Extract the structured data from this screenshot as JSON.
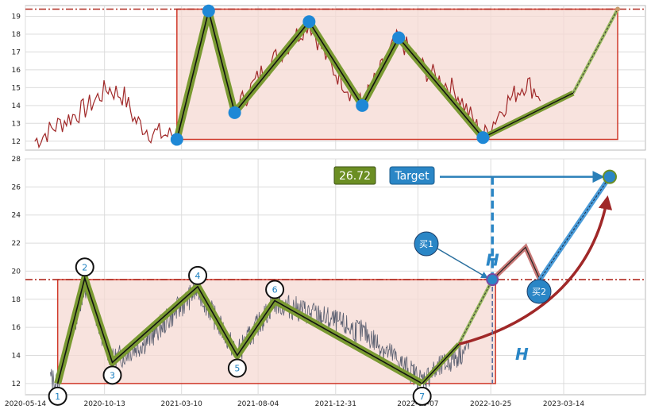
{
  "chart_data": [
    {
      "type": "line",
      "title": "",
      "xlabel": "",
      "ylabel": "",
      "ylim": [
        11.5,
        19.6
      ],
      "yticks": [
        12,
        13,
        14,
        15,
        16,
        17,
        18,
        19
      ],
      "grid": true,
      "colors": {
        "price": "#a02828",
        "pattern": "#6b8e23",
        "marker": "#1e88d6",
        "box": "#d03a2b"
      },
      "series": [
        {
          "values_trace": [
            [
              12.0,
              12.3
            ],
            [
              12.5,
              12.8
            ],
            [
              13.0,
              13.4
            ],
            [
              13.6,
              13.2
            ],
            [
              14.0,
              14.6
            ],
            [
              14.4,
              15.1
            ],
            [
              14.8,
              14.2
            ],
            [
              15.2,
              15.0
            ],
            [
              15.1,
              13.2
            ],
            [
              13.4,
              12.8
            ],
            [
              12.6,
              12.4
            ],
            [
              12.2,
              12.5
            ],
            [
              12.1,
              12.2
            ],
            [
              12.5,
              12.3
            ]
          ]
        }
      ],
      "pattern_points": [
        {
          "x": "2021-03-01",
          "y": 12.1
        },
        {
          "x": "2021-05-01",
          "y": 19.3
        },
        {
          "x": "2021-06-20",
          "y": 13.6
        },
        {
          "x": "2021-11-10",
          "y": 18.7
        },
        {
          "x": "2022-02-20",
          "y": 14.0
        },
        {
          "x": "2022-05-01",
          "y": 17.8
        },
        {
          "x": "2022-10-10",
          "y": 12.2
        }
      ],
      "resistance_level": 19.4,
      "box_range": [
        12.1,
        19.4
      ]
    },
    {
      "type": "line",
      "title": "",
      "xlabel": "",
      "ylabel": "",
      "ylim": [
        11.2,
        28.0
      ],
      "yticks": [
        12,
        14,
        16,
        18,
        20,
        22,
        24,
        26,
        28
      ],
      "xticks": [
        "2020-05-14",
        "2020-10-13",
        "2021-03-10",
        "2021-08-04",
        "2021-12-31",
        "2022-06-07",
        "2022-10-25",
        "2023-03-14"
      ],
      "grid": true,
      "resistance_level": 19.4,
      "box_range": [
        12.0,
        19.4
      ],
      "pattern_points": [
        {
          "label": "1",
          "x": "2020-07-15",
          "y": 12.0
        },
        {
          "label": "2",
          "x": "2020-09-05",
          "y": 19.5
        },
        {
          "label": "3",
          "x": "2020-10-28",
          "y": 13.5
        },
        {
          "label": "4",
          "x": "2021-04-10",
          "y": 18.9
        },
        {
          "label": "5",
          "x": "2021-06-25",
          "y": 14.0
        },
        {
          "label": "6",
          "x": "2021-09-05",
          "y": 17.9
        },
        {
          "label": "7",
          "x": "2022-06-15",
          "y": 12.0
        }
      ],
      "target_value": 26.72,
      "target_label": "Target",
      "buy_labels": [
        "买1",
        "买2"
      ],
      "height_label": "H"
    }
  ]
}
